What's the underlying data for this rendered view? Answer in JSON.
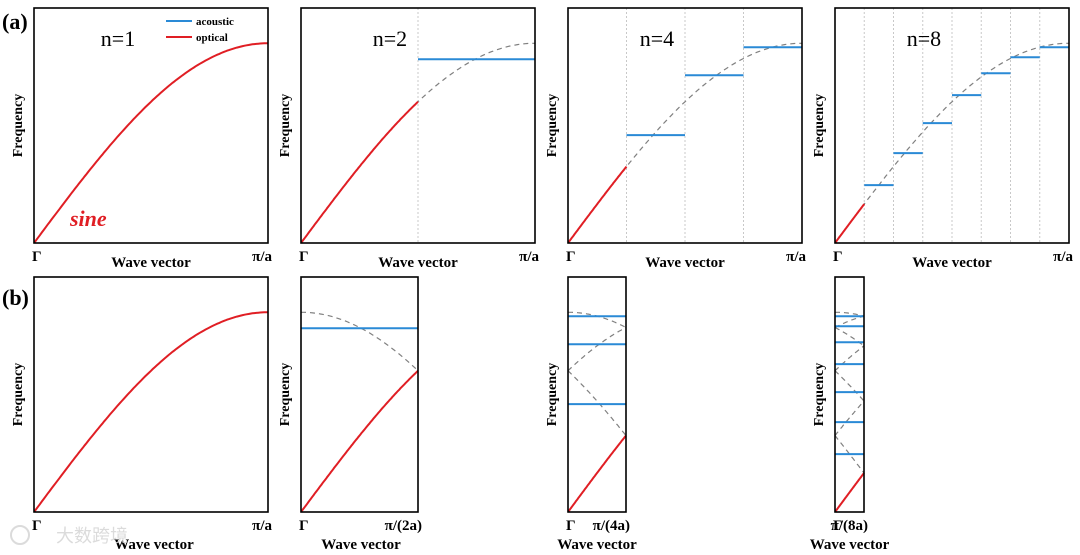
{
  "colors": {
    "acoustic": "#2a8ad6",
    "optical": "#e01e24",
    "folded": "#808080",
    "divider": "#c8c8c8"
  },
  "row_labels": {
    "a": "(a)",
    "b": "(b)"
  },
  "legend": {
    "acoustic": "acoustic",
    "optical": "optical"
  },
  "annotation": "sine",
  "watermark": "大数跨境",
  "chart_data": [
    {
      "id": "a1",
      "type": "line",
      "row": "a",
      "n": 1,
      "title": "n=1",
      "xlabel": "Wave vector",
      "ylabel": "Frequency",
      "x_ticks": [
        "Γ",
        "π/a"
      ],
      "xlim": [
        0,
        1
      ],
      "ylim": [
        0,
        1
      ],
      "dispersion": "sin(pi*k/2)",
      "acoustic_k_max": 1,
      "optical_levels": []
    },
    {
      "id": "a2",
      "type": "line",
      "row": "a",
      "n": 2,
      "title": "n=2",
      "xlabel": "Wave vector",
      "ylabel": "Frequency",
      "x_ticks": [
        "Γ",
        "π/a"
      ],
      "xlim": [
        0,
        1
      ],
      "ylim": [
        0,
        1
      ],
      "dispersion": "sin(pi*k/2)",
      "acoustic_k_max": 0.5,
      "optical_levels": [
        0.92
      ]
    },
    {
      "id": "a3",
      "type": "line",
      "row": "a",
      "n": 4,
      "title": "n=4",
      "xlabel": "Wave vector",
      "ylabel": "Frequency",
      "x_ticks": [
        "Γ",
        "π/a"
      ],
      "xlim": [
        0,
        1
      ],
      "ylim": [
        0,
        1
      ],
      "dispersion": "sin(pi*k/2)",
      "acoustic_k_max": 0.25,
      "optical_levels": [
        0.54,
        0.84,
        0.98
      ]
    },
    {
      "id": "a4",
      "type": "line",
      "row": "a",
      "n": 8,
      "title": "n=8",
      "xlabel": "Wave vector",
      "ylabel": "Frequency",
      "x_ticks": [
        "Γ",
        "π/a"
      ],
      "xlim": [
        0,
        1
      ],
      "ylim": [
        0,
        1
      ],
      "dispersion": "sin(pi*k/2)",
      "acoustic_k_max": 0.125,
      "optical_levels": [
        0.29,
        0.45,
        0.6,
        0.74,
        0.85,
        0.93,
        0.98
      ]
    },
    {
      "id": "b1",
      "type": "line",
      "row": "b",
      "n": 1,
      "title": "",
      "xlabel": "Wave vector",
      "ylabel": "Frequency",
      "x_ticks": [
        "Γ",
        "π/a"
      ],
      "xlim": [
        0,
        1
      ],
      "ylim": [
        0,
        1
      ],
      "dispersion": "sin(pi*k/2)",
      "acoustic_k_max": 1,
      "optical_levels": []
    },
    {
      "id": "b2",
      "type": "line",
      "row": "b",
      "n": 2,
      "title": "",
      "xlabel": "Wave vector",
      "ylabel": "Frequency",
      "x_ticks": [
        "Γ",
        "π/(2a)"
      ],
      "xlim": [
        0,
        0.5
      ],
      "ylim": [
        0,
        1
      ],
      "dispersion": "sin(pi*k/2), folded",
      "acoustic_k_max": 0.5,
      "optical_levels": [
        0.92
      ]
    },
    {
      "id": "b3",
      "type": "line",
      "row": "b",
      "n": 4,
      "title": "",
      "xlabel": "Wave vector",
      "ylabel": "Frequency",
      "x_ticks": [
        "Γ",
        "π/(4a)"
      ],
      "xlim": [
        0,
        0.25
      ],
      "ylim": [
        0,
        1
      ],
      "dispersion": "sin(pi*k/2), folded",
      "acoustic_k_max": 0.25,
      "optical_levels": [
        0.54,
        0.84,
        0.98
      ]
    },
    {
      "id": "b4",
      "type": "line",
      "row": "b",
      "n": 8,
      "title": "",
      "xlabel": "Wave vector",
      "ylabel": "Frequency",
      "x_ticks": [
        "Γ",
        "π/(8a)"
      ],
      "xlim": [
        0,
        0.125
      ],
      "ylim": [
        0,
        1
      ],
      "dispersion": "sin(pi*k/2), folded",
      "acoustic_k_max": 0.125,
      "optical_levels": [
        0.29,
        0.45,
        0.6,
        0.74,
        0.85,
        0.93,
        0.98
      ]
    }
  ]
}
